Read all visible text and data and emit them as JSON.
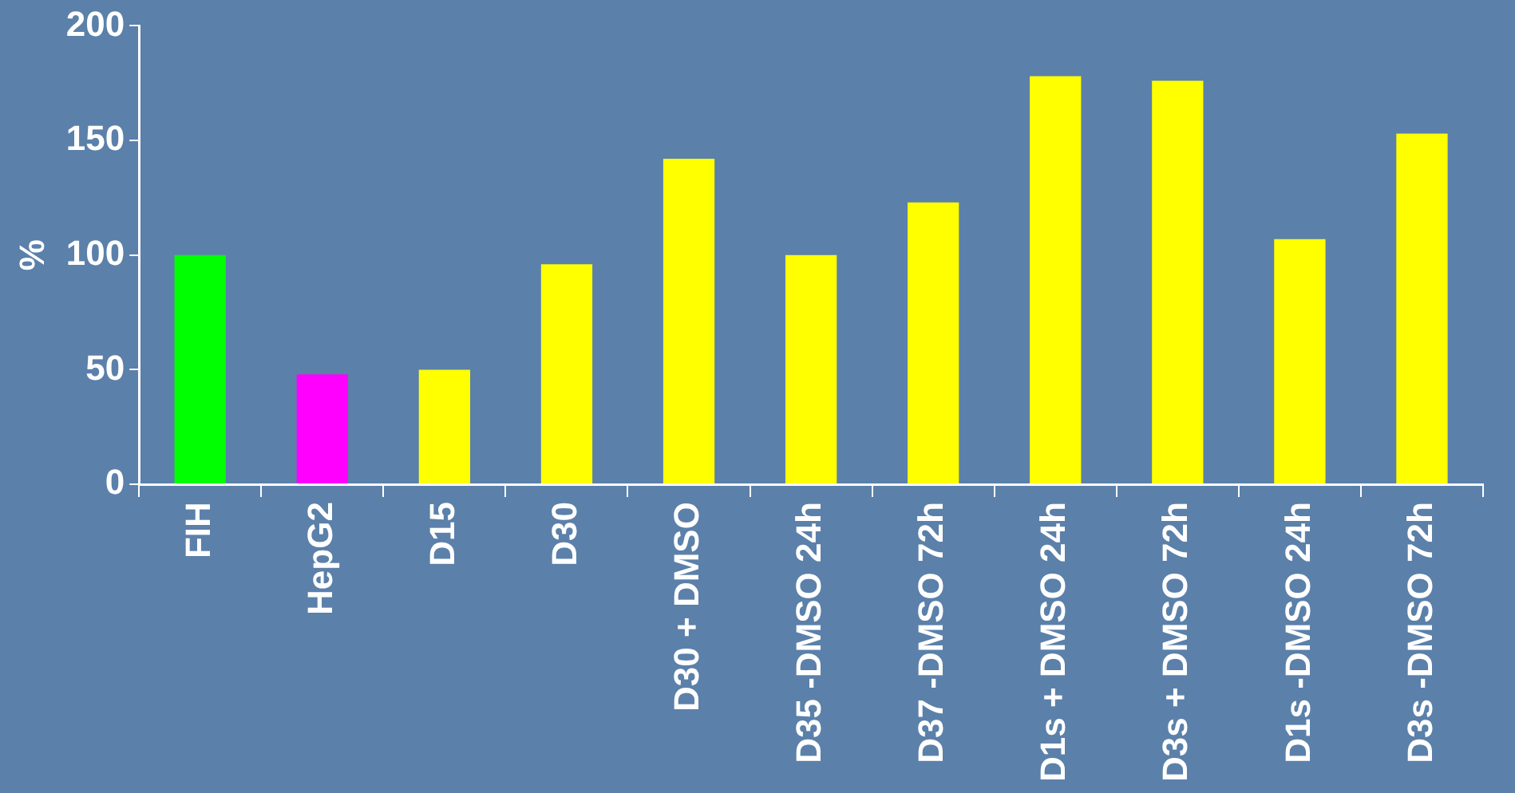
{
  "chart_data": {
    "type": "bar",
    "ylabel": "%",
    "categories": [
      "FIH",
      "HepG2",
      "D15",
      "D30",
      "D30 + DMSO",
      "D35 -DMSO 24h",
      "D37 -DMSO 72h",
      "D1s + DMSO 24h",
      "D3s + DMSO 72h",
      "D1s -DMSO 24h",
      "D3s -DMSO 72h"
    ],
    "values": [
      100,
      48,
      50,
      96,
      142,
      100,
      123,
      178,
      176,
      107,
      153
    ],
    "colors": [
      "#00ff00",
      "#ff00ff",
      "#ffff00",
      "#ffff00",
      "#ffff00",
      "#ffff00",
      "#ffff00",
      "#ffff00",
      "#ffff00",
      "#ffff00",
      "#ffff00"
    ],
    "ylim": [
      0,
      200
    ],
    "yticks": [
      0,
      50,
      100,
      150,
      200
    ],
    "grid": false
  }
}
